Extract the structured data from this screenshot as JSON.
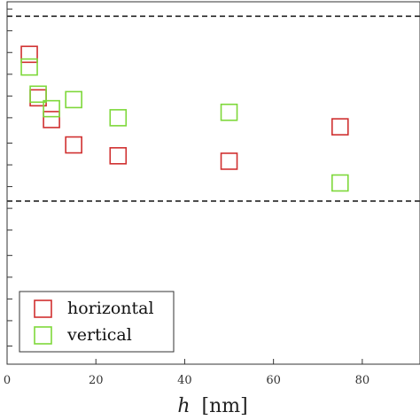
{
  "chart_data": {
    "type": "scatter",
    "title": "",
    "xlabel_var": "h",
    "xlabel_unit": "[nm]",
    "ylabel": "",
    "xlim": [
      0,
      93
    ],
    "ylim": [
      0,
      1
    ],
    "x_tick_labels": [
      "0",
      "20",
      "40",
      "60",
      "80"
    ],
    "x_ticks": [
      0,
      20,
      40,
      60,
      80
    ],
    "y_ticks": [
      0.05,
      0.12,
      0.18,
      0.24,
      0.3,
      0.37,
      0.43,
      0.49,
      0.55,
      0.61,
      0.68,
      0.74,
      0.8,
      0.86,
      0.92,
      0.98
    ],
    "reference_lines": [
      0.96,
      0.45
    ],
    "marker": "open-square",
    "legend_position": "bottom-left",
    "series": [
      {
        "name": "horizontal",
        "color": "#d03030",
        "x": [
          5,
          7,
          10,
          15,
          25,
          50,
          75
        ],
        "y": [
          0.855,
          0.735,
          0.675,
          0.605,
          0.575,
          0.56,
          0.655
        ]
      },
      {
        "name": "vertical",
        "color": "#7ed83a",
        "x": [
          5,
          7,
          10,
          15,
          25,
          50,
          75
        ],
        "y": [
          0.82,
          0.745,
          0.705,
          0.73,
          0.68,
          0.695,
          0.5
        ]
      }
    ]
  }
}
